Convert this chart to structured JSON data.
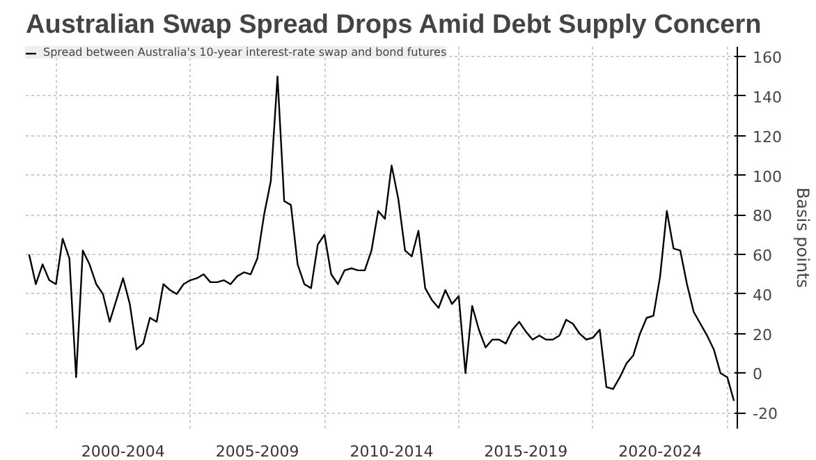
{
  "chart_data": {
    "type": "line",
    "title": "Australian Swap Spread Drops Amid Debt Supply Concern",
    "ylabel": "Basis points",
    "categories": [
      null,
      null,
      null,
      null,
      null,
      null,
      null,
      null,
      null,
      null,
      null,
      null,
      null,
      null,
      "2000-2004",
      null,
      null,
      null,
      null,
      null,
      null,
      null,
      null,
      null,
      null,
      null,
      null,
      null,
      null,
      null,
      null,
      null,
      null,
      null,
      "2005-2009",
      null,
      null,
      null,
      null,
      null,
      null,
      null,
      null,
      null,
      null,
      null,
      null,
      null,
      null,
      null,
      null,
      null,
      null,
      null,
      "2010-2014",
      null,
      null,
      null,
      null,
      null,
      null,
      null,
      null,
      null,
      null,
      null,
      null,
      null,
      null,
      null,
      null,
      null,
      null,
      null,
      "2015-2019",
      null,
      null,
      null,
      null,
      null,
      null,
      null,
      null,
      null,
      null,
      null,
      null,
      null,
      null,
      null,
      null,
      null,
      null,
      null,
      "2020-2024",
      null,
      null,
      null,
      null,
      null,
      null,
      null,
      null,
      null,
      null,
      null
    ],
    "series": [
      {
        "name": "Spread between Australia's 10-year interest-rate swap and bond futures",
        "color": "#000000",
        "values": [
          60,
          45,
          55,
          47,
          45,
          68,
          58,
          -2,
          62,
          55,
          45,
          40,
          26,
          37,
          48,
          35,
          12,
          15,
          28,
          26,
          45,
          42,
          40,
          45,
          47,
          48,
          50,
          46,
          46,
          47,
          45,
          49,
          51,
          50,
          58,
          80,
          97,
          150,
          87,
          85,
          55,
          45,
          43,
          65,
          70,
          50,
          45,
          52,
          53,
          52,
          52,
          62,
          82,
          78,
          105,
          88,
          62,
          59,
          72,
          43,
          37,
          33,
          42,
          35,
          39,
          0,
          34,
          22,
          13,
          17,
          17,
          15,
          22,
          26,
          21,
          17,
          19,
          17,
          17,
          19,
          27,
          25,
          20,
          17,
          18,
          22,
          -7,
          -8,
          -2,
          5,
          9,
          20,
          28,
          29,
          49,
          82,
          63,
          62,
          45,
          31,
          25,
          19,
          12,
          0,
          -2,
          -14
        ]
      }
    ],
    "ylim": [
      -28,
      165
    ],
    "yticks": [
      -20,
      0,
      20,
      40,
      60,
      80,
      100,
      120,
      140,
      160
    ],
    "grid": true,
    "legend": "top left",
    "line_style": "solid"
  }
}
